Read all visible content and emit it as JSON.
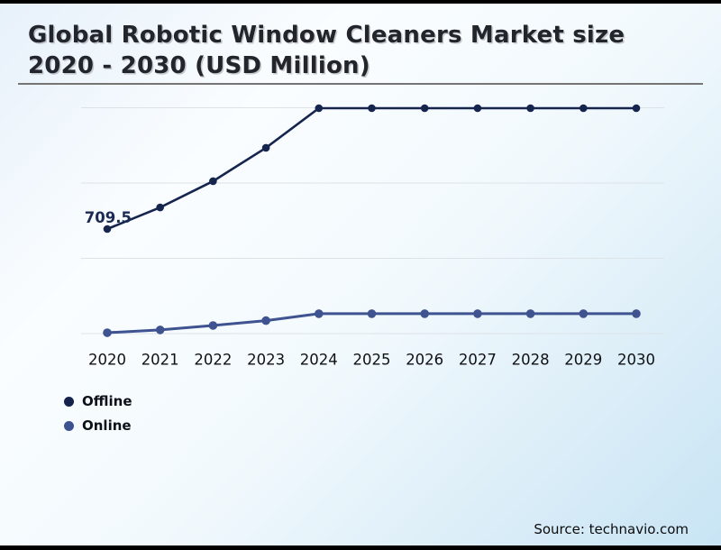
{
  "title": {
    "text": "Global Robotic Window Cleaners Market size 2020 - 2030 (USD Million)"
  },
  "source": {
    "text": "Source: technavio.com"
  },
  "legend": {
    "items": [
      {
        "label": "Offline",
        "color": "#15234d"
      },
      {
        "label": "Online",
        "color": "#3d5290"
      }
    ]
  },
  "colors": {
    "offline_line": "#16254d",
    "online_line": "#3e5390",
    "gridline": "#dde2e7",
    "axis_label": "#101114",
    "data_label": "#1a2a52",
    "background_top": "#e7f1fa",
    "background_bottom": "#c8e4f4"
  },
  "chart_data": {
    "type": "line",
    "x": [
      2020,
      2021,
      2022,
      2023,
      2024,
      2025,
      2026,
      2027,
      2028,
      2029,
      2030
    ],
    "series": [
      {
        "name": "Offline",
        "color": "#16254d",
        "values": [
          709.5,
          856,
          1034,
          1260,
          1529,
          1529,
          1529,
          1529,
          1529,
          1529,
          1529
        ]
      },
      {
        "name": "Online",
        "color": "#3e5390",
        "values": [
          6,
          25,
          55,
          88,
          135,
          135,
          135,
          135,
          135,
          135,
          135
        ]
      }
    ],
    "data_labels": [
      {
        "series": "Offline",
        "x": 2020,
        "text": "709.5"
      }
    ],
    "title": "Global Robotic Window Cleaners Market size 2020 - 2030 (USD Million)",
    "xlabel": "",
    "ylabel": "",
    "x_range": [
      2020,
      2030
    ],
    "y_axis_labels_visible": false,
    "grid": "horizontal-only",
    "legend_position": "bottom-left"
  }
}
